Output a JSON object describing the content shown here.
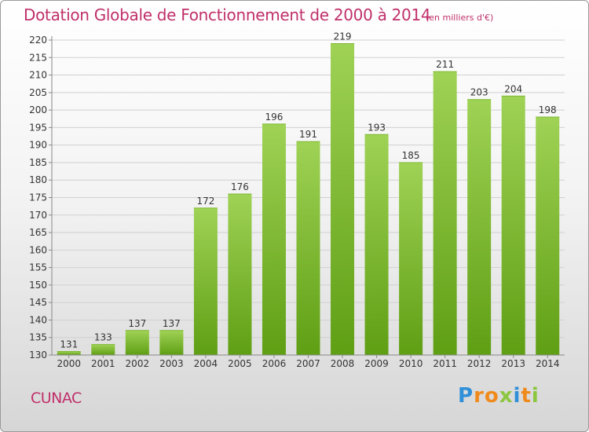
{
  "title": "Dotation Globale de Fonctionnement de 2000 à 2014",
  "unit_note": "(en milliers d'€)",
  "commune": "CUNAC",
  "logo": {
    "letters": [
      "P",
      "r",
      "o",
      "x",
      "i",
      "t",
      "i"
    ],
    "colors": [
      "#2f8fd8",
      "#f08a1c",
      "#f08a1c",
      "#8cc63f",
      "#2f8fd8",
      "#f08a1c",
      "#8cc63f"
    ]
  },
  "colors": {
    "title": "#c0306a",
    "bar_light": "#9fd255",
    "bar_dark": "#5f9f14"
  },
  "chart_data": {
    "type": "bar",
    "categories": [
      "2000",
      "2001",
      "2002",
      "2003",
      "2004",
      "2005",
      "2006",
      "2007",
      "2008",
      "2009",
      "2010",
      "2011",
      "2012",
      "2013",
      "2014"
    ],
    "values": [
      131,
      133,
      137,
      137,
      172,
      176,
      196,
      191,
      219,
      193,
      185,
      211,
      203,
      204,
      198
    ],
    "title": "Dotation Globale de Fonctionnement de 2000 à 2014",
    "xlabel": "",
    "ylabel": "",
    "ylim": [
      130,
      220
    ],
    "yticks": [
      130,
      135,
      140,
      145,
      150,
      155,
      160,
      165,
      170,
      175,
      180,
      185,
      190,
      195,
      200,
      205,
      210,
      215,
      220
    ],
    "grid": true
  }
}
